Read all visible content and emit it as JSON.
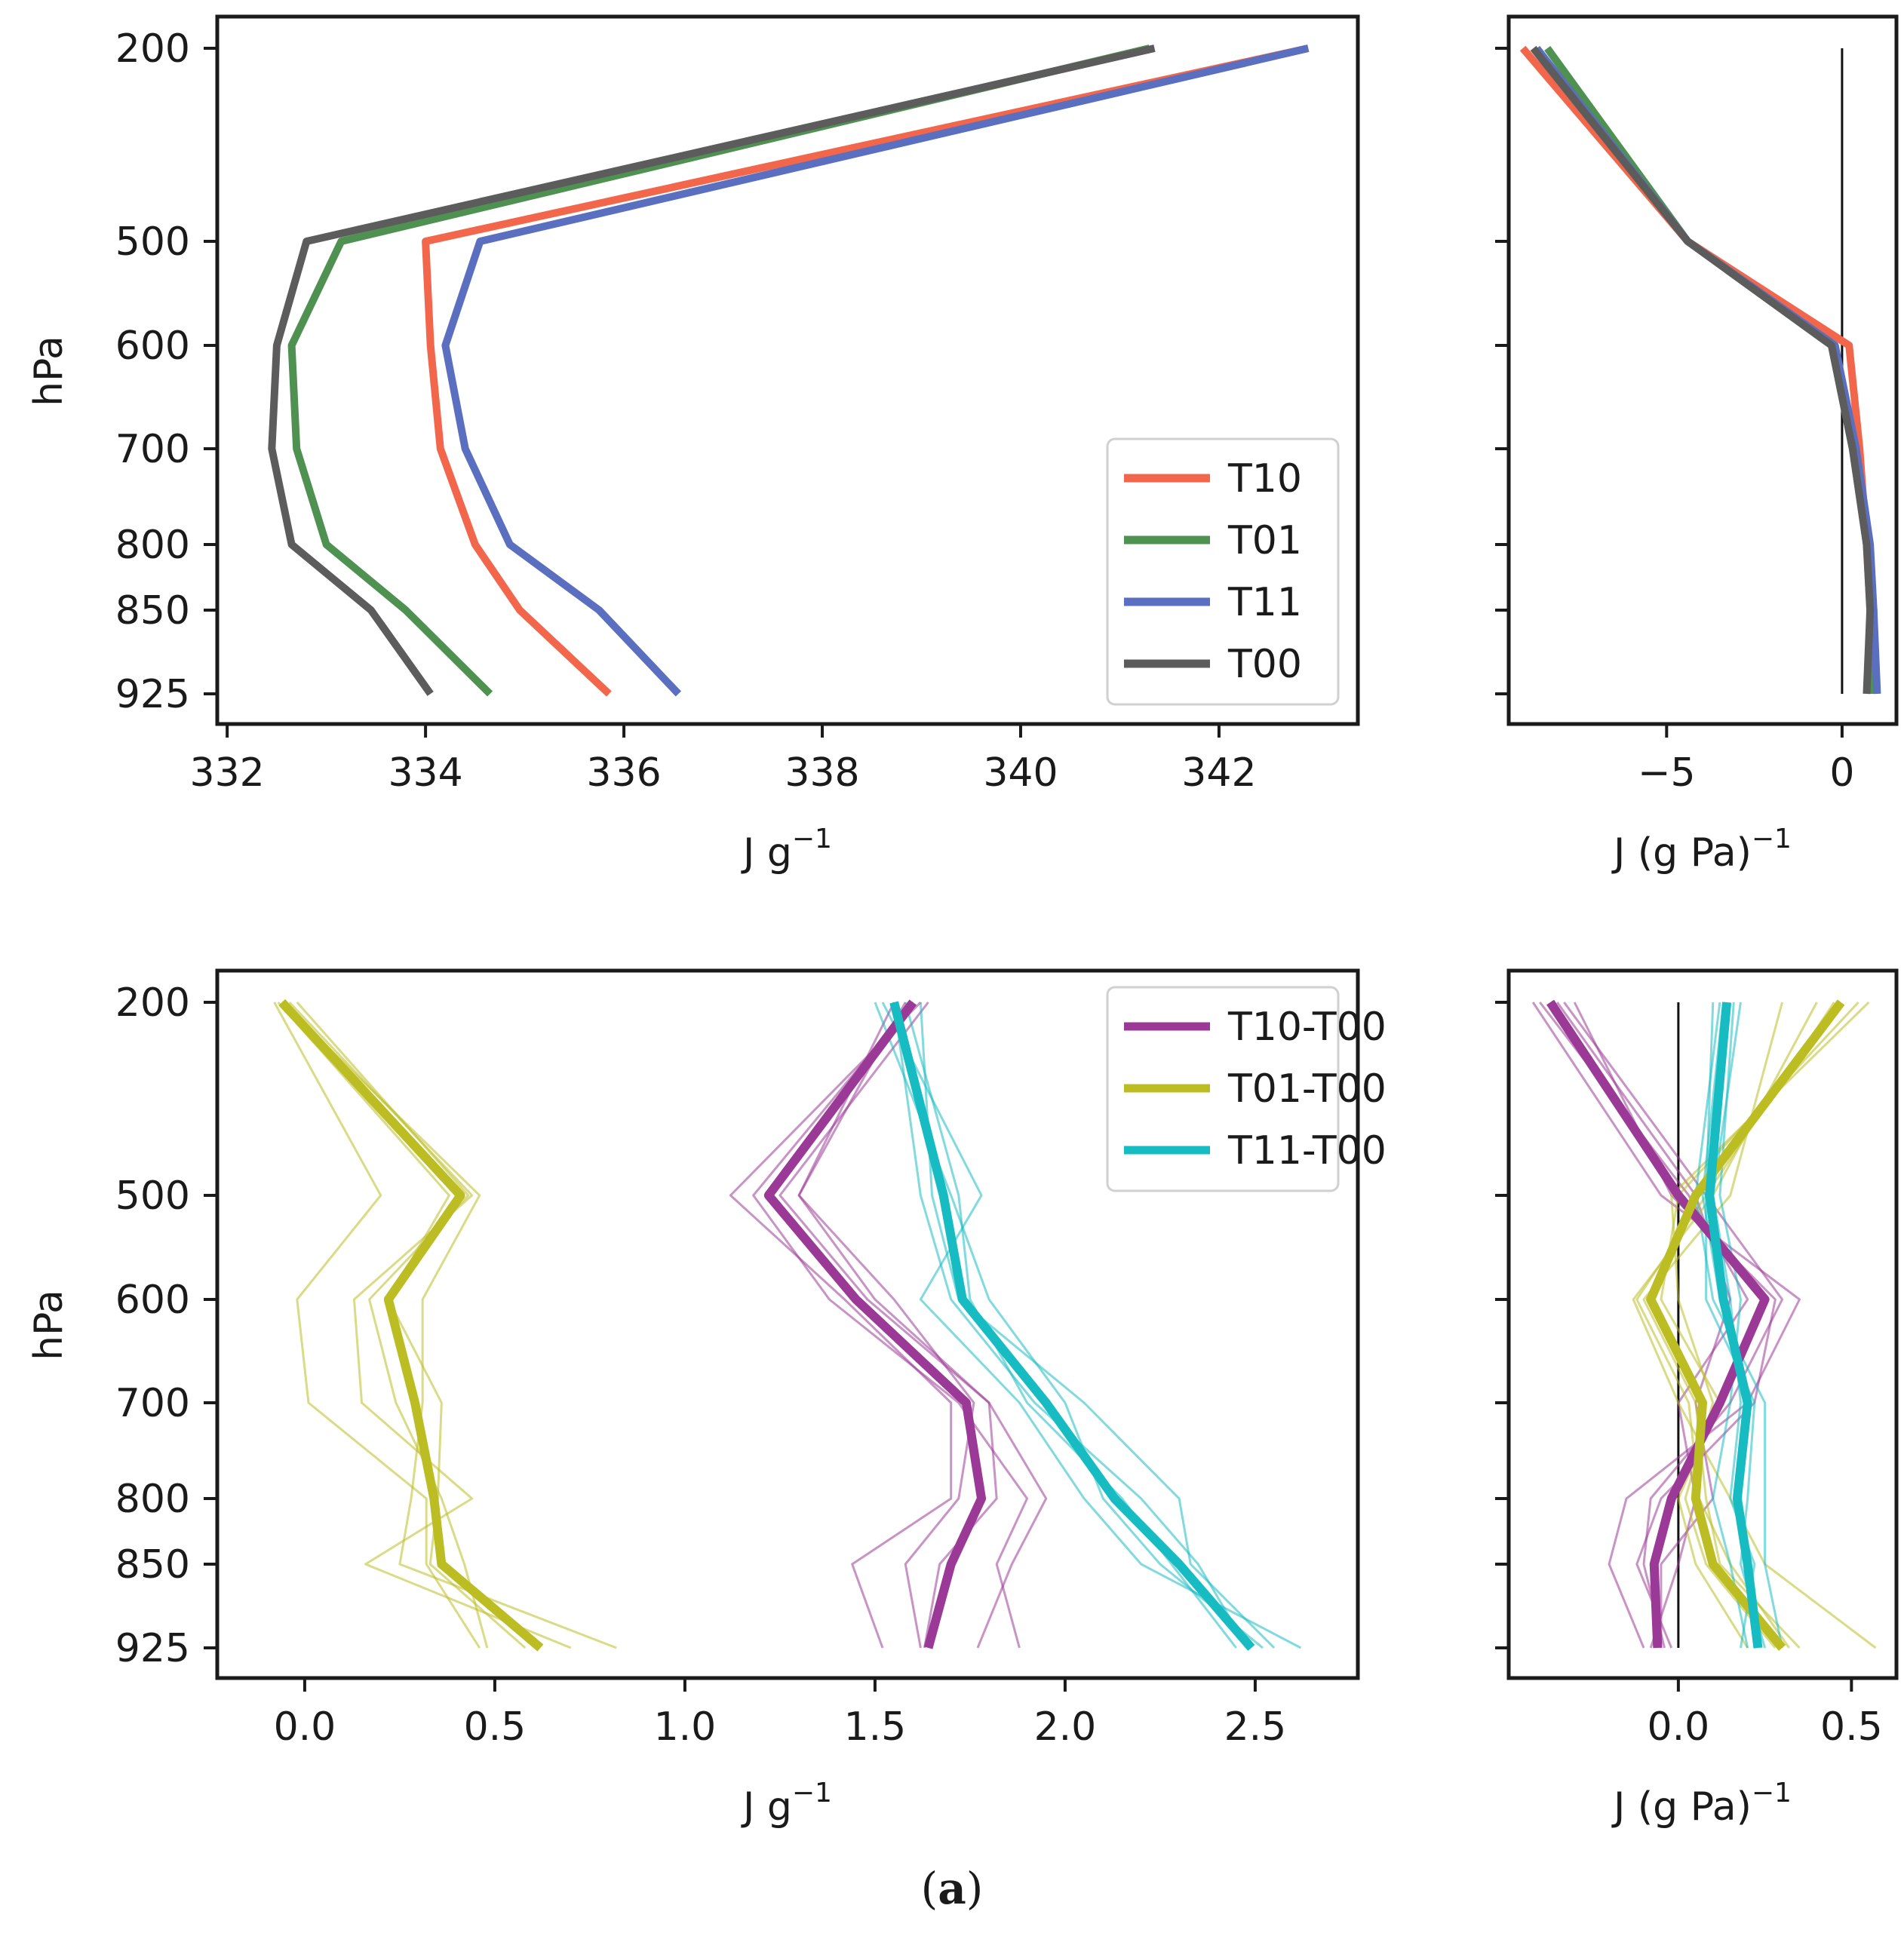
{
  "figure_label": {
    "open": "(",
    "letter": "a",
    "close": ")"
  },
  "chart_data": [
    {
      "type": "line",
      "panel": "top-left",
      "xlabel": "J g",
      "xlabel_exp": "−1",
      "ylabel": "hPa",
      "xlim": [
        331.9,
        343.4
      ],
      "xticks": [
        332,
        334,
        336,
        338,
        340,
        342
      ],
      "yticks": [
        200,
        500,
        600,
        700,
        800,
        850,
        925
      ],
      "grid": false,
      "legend": "lower-right",
      "levels": [
        200,
        500,
        600,
        700,
        800,
        850,
        925
      ],
      "series": [
        {
          "name": "T10",
          "color": "#f2674c",
          "values": [
            342.9,
            334.0,
            334.05,
            334.15,
            334.5,
            334.95,
            335.85
          ]
        },
        {
          "name": "T01",
          "color": "#4f9150",
          "values": [
            341.3,
            333.15,
            332.65,
            332.7,
            333.0,
            333.8,
            334.65
          ]
        },
        {
          "name": "T11",
          "color": "#5a6fbf",
          "values": [
            342.9,
            334.55,
            334.2,
            334.4,
            334.85,
            335.75,
            336.55
          ]
        },
        {
          "name": "T00",
          "color": "#5c5c5c",
          "values": [
            341.35,
            332.8,
            332.5,
            332.45,
            332.65,
            333.45,
            334.05
          ]
        }
      ]
    },
    {
      "type": "line",
      "panel": "top-right",
      "xlabel": "J (g Pa)",
      "xlabel_exp": "−1",
      "xlim": [
        -9.5,
        1.55
      ],
      "xticks": [
        -5,
        0
      ],
      "xtick_labels": [
        "−5",
        "0"
      ],
      "yticks": [
        200,
        500,
        600,
        700,
        800,
        850,
        925
      ],
      "zero_line": {
        "x": 0,
        "y_from": 200,
        "y_to": 925
      },
      "levels": [
        200,
        500,
        600,
        700,
        800,
        850,
        925
      ],
      "series": [
        {
          "name": "T10",
          "color": "#f2674c",
          "values": [
            -9.1,
            -4.4,
            0.2,
            0.5,
            0.7,
            0.8,
            0.8
          ]
        },
        {
          "name": "T01",
          "color": "#4f9150",
          "values": [
            -8.4,
            -4.4,
            -0.3,
            0.3,
            0.7,
            0.9,
            0.9
          ]
        },
        {
          "name": "T11",
          "color": "#5a6fbf",
          "values": [
            -8.7,
            -4.4,
            -0.2,
            0.4,
            0.8,
            0.9,
            1.0
          ]
        },
        {
          "name": "T00",
          "color": "#5c5c5c",
          "values": [
            -8.8,
            -4.4,
            -0.3,
            0.3,
            0.7,
            0.8,
            0.7
          ]
        }
      ]
    },
    {
      "type": "line",
      "panel": "bottom-left",
      "xlabel": "J g",
      "xlabel_exp": "−1",
      "ylabel": "hPa",
      "xlim": [
        -0.23,
        2.77
      ],
      "xticks": [
        0.0,
        0.5,
        1.0,
        1.5,
        2.0,
        2.5
      ],
      "xtick_labels": [
        "0.0",
        "0.5",
        "1.0",
        "1.5",
        "2.0",
        "2.5"
      ],
      "yticks": [
        200,
        500,
        600,
        700,
        800,
        850,
        925
      ],
      "legend": "top-right",
      "levels": [
        200,
        500,
        600,
        700,
        800,
        850,
        925
      ],
      "series": [
        {
          "name": "T10-T00",
          "color": "#9b3a96",
          "values": [
            1.6,
            1.22,
            1.45,
            1.74,
            1.78,
            1.7,
            1.64
          ],
          "members": [
            [
              1.62,
              1.12,
              1.42,
              1.7,
              1.7,
              1.44,
              1.52
            ],
            [
              1.58,
              1.3,
              1.5,
              1.8,
              1.95,
              1.86,
              1.77
            ],
            [
              1.6,
              1.18,
              1.38,
              1.72,
              1.9,
              1.82,
              1.88
            ],
            [
              1.55,
              1.3,
              1.55,
              1.76,
              1.72,
              1.58,
              1.62
            ],
            [
              1.64,
              1.25,
              1.48,
              1.8,
              1.82,
              1.67,
              1.63
            ]
          ]
        },
        {
          "name": "T01-T00",
          "color": "#bcbd22",
          "values": [
            -0.06,
            0.41,
            0.22,
            0.29,
            0.34,
            0.36,
            0.62
          ],
          "members": [
            [
              -0.08,
              0.2,
              -0.02,
              0.01,
              0.32,
              0.32,
              0.46
            ],
            [
              -0.04,
              0.44,
              0.13,
              0.15,
              0.44,
              0.16,
              0.7
            ],
            [
              -0.06,
              0.46,
              0.31,
              0.31,
              0.28,
              0.25,
              0.82
            ],
            [
              -0.02,
              0.43,
              0.17,
              0.24,
              0.36,
              0.42,
              0.48
            ],
            [
              -0.07,
              0.38,
              0.22,
              0.36,
              0.35,
              0.33,
              0.58
            ]
          ]
        },
        {
          "name": "T11-T00",
          "color": "#17bcc3",
          "values": [
            1.55,
            1.68,
            1.73,
            1.95,
            2.13,
            2.3,
            2.49
          ],
          "members": [
            [
              1.52,
              1.78,
              1.62,
              1.88,
              2.05,
              2.2,
              2.62
            ],
            [
              1.62,
              1.65,
              1.72,
              2.05,
              2.3,
              2.33,
              2.55
            ],
            [
              1.55,
              1.62,
              1.7,
              1.92,
              2.2,
              2.35,
              2.48
            ],
            [
              1.5,
              1.7,
              1.8,
              2.0,
              2.1,
              2.25,
              2.52
            ],
            [
              1.58,
              1.72,
              1.75,
              1.9,
              2.15,
              2.28,
              2.45
            ]
          ]
        }
      ]
    },
    {
      "type": "line",
      "panel": "bottom-right",
      "xlabel": "J (g Pa)",
      "xlabel_exp": "−1",
      "xlim": [
        -0.49,
        0.63
      ],
      "xticks": [
        0.0,
        0.5
      ],
      "xtick_labels": [
        "0.0",
        "0.5"
      ],
      "yticks": [
        200,
        500,
        600,
        700,
        800,
        850,
        925
      ],
      "zero_line": {
        "x": 0,
        "y_from": 200,
        "y_to": 925
      },
      "levels": [
        200,
        500,
        600,
        700,
        800,
        850,
        925
      ],
      "series": [
        {
          "name": "T10-T00",
          "color": "#9b3a96",
          "values": [
            -0.37,
            0.0,
            0.25,
            0.12,
            -0.02,
            -0.07,
            -0.06
          ],
          "members": [
            [
              -0.42,
              -0.05,
              0.35,
              0.2,
              -0.15,
              -0.2,
              -0.1
            ],
            [
              -0.35,
              0.05,
              0.15,
              0.05,
              0.1,
              -0.05,
              -0.05
            ],
            [
              -0.3,
              -0.02,
              0.28,
              0.22,
              -0.05,
              -0.12,
              -0.02
            ],
            [
              -0.4,
              0.03,
              0.2,
              0.0,
              0.05,
              0.0,
              -0.08
            ],
            [
              -0.33,
              0.08,
              0.3,
              0.15,
              -0.08,
              -0.1,
              -0.04
            ]
          ]
        },
        {
          "name": "T01-T00",
          "color": "#bcbd22",
          "values": [
            0.47,
            0.05,
            -0.08,
            0.07,
            0.05,
            0.1,
            0.3
          ],
          "members": [
            [
              0.4,
              0.1,
              -0.13,
              0.0,
              0.15,
              0.25,
              0.57
            ],
            [
              0.52,
              0.0,
              -0.05,
              0.12,
              0.0,
              0.05,
              0.2
            ],
            [
              0.3,
              0.15,
              -0.1,
              0.05,
              0.08,
              0.12,
              0.35
            ],
            [
              0.55,
              -0.02,
              0.0,
              0.1,
              0.02,
              0.08,
              0.28
            ],
            [
              0.45,
              0.08,
              -0.12,
              0.03,
              0.06,
              0.15,
              0.32
            ]
          ]
        },
        {
          "name": "T11-T00",
          "color": "#17bcc3",
          "values": [
            0.14,
            0.09,
            0.13,
            0.2,
            0.17,
            0.2,
            0.23
          ],
          "members": [
            [
              0.12,
              0.05,
              0.1,
              0.25,
              0.25,
              0.25,
              0.3
            ],
            [
              0.16,
              0.12,
              0.18,
              0.15,
              0.1,
              0.15,
              0.2
            ],
            [
              0.1,
              0.08,
              0.08,
              0.22,
              0.2,
              0.18,
              0.25
            ],
            [
              0.18,
              0.1,
              0.15,
              0.18,
              0.15,
              0.22,
              0.18
            ],
            [
              0.13,
              0.07,
              0.12,
              0.2,
              0.18,
              0.19,
              0.24
            ]
          ]
        }
      ]
    }
  ]
}
